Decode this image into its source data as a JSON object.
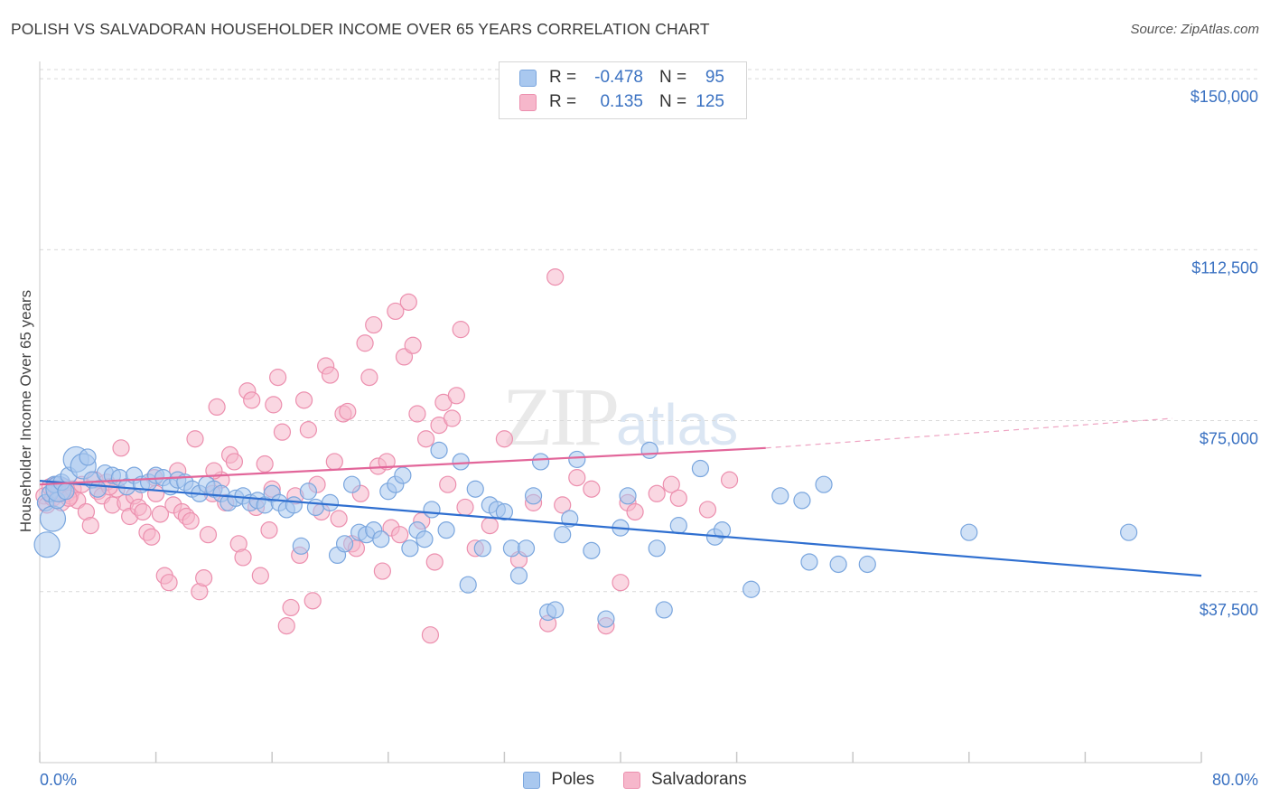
{
  "title": "POLISH VS SALVADORAN HOUSEHOLDER INCOME OVER 65 YEARS CORRELATION CHART",
  "source": "Source: ZipAtlas.com",
  "watermark": {
    "zip": "ZIP",
    "atlas": "atlas"
  },
  "legend": {
    "rows": [
      {
        "r_label": "R =",
        "r_value": "-0.478",
        "n_label": "N =",
        "n_value": "95"
      },
      {
        "r_label": "R =",
        "r_value": "0.135",
        "n_label": "N =",
        "n_value": "125"
      }
    ]
  },
  "bottom_legend": [
    "Poles",
    "Salvadorans"
  ],
  "colors": {
    "poles_fill": "#a9c8ef",
    "poles_stroke": "#7aa6de",
    "poles_line": "#2f6fd0",
    "salv_fill": "#f6b7cb",
    "salv_stroke": "#ec8fae",
    "salv_line": "#e2669a",
    "axis_label": "#3b72c2",
    "grid": "#d9d9d9"
  },
  "chart_data": {
    "type": "scatter",
    "title": "POLISH VS SALVADORAN HOUSEHOLDER INCOME OVER 65 YEARS CORRELATION CHART",
    "xlabel": "",
    "ylabel": "Householder Income Over 65 years",
    "xlim": [
      0,
      80
    ],
    "ylim": [
      0,
      152000
    ],
    "x_tick_labels": [
      "0.0%",
      "80.0%"
    ],
    "y_ticks": [
      37500,
      75000,
      112500,
      150000
    ],
    "y_tick_labels": [
      "$37,500",
      "$75,000",
      "$112,500",
      "$150,000"
    ],
    "grid": true,
    "legend_position": "top-center",
    "series": [
      {
        "name": "Poles",
        "trend": {
          "x": [
            0,
            80
          ],
          "y": [
            61800,
            41000
          ]
        },
        "points": [
          [
            0.4,
            57000
          ],
          [
            0.5,
            47800
          ],
          [
            0.7,
            59000
          ],
          [
            0.9,
            53500
          ],
          [
            1.0,
            61000
          ],
          [
            1.2,
            57500
          ],
          [
            1.3,
            60000
          ],
          [
            1.5,
            61500
          ],
          [
            1.8,
            59500
          ],
          [
            2.0,
            63000
          ],
          [
            2.5,
            66500
          ],
          [
            3.0,
            65000
          ],
          [
            3.3,
            67000
          ],
          [
            3.6,
            62000
          ],
          [
            4.0,
            60000
          ],
          [
            4.5,
            63500
          ],
          [
            5.0,
            63000
          ],
          [
            5.5,
            62500
          ],
          [
            6.0,
            60500
          ],
          [
            6.5,
            63000
          ],
          [
            7.0,
            61000
          ],
          [
            7.5,
            61500
          ],
          [
            8.0,
            63000
          ],
          [
            8.5,
            62500
          ],
          [
            9.0,
            60500
          ],
          [
            9.5,
            62000
          ],
          [
            10.0,
            61500
          ],
          [
            10.5,
            60000
          ],
          [
            11.0,
            59000
          ],
          [
            11.5,
            61000
          ],
          [
            12.0,
            60000
          ],
          [
            12.5,
            59000
          ],
          [
            13.0,
            57000
          ],
          [
            13.5,
            58000
          ],
          [
            14.0,
            58500
          ],
          [
            14.5,
            57000
          ],
          [
            15.0,
            57500
          ],
          [
            15.5,
            56500
          ],
          [
            16.0,
            59000
          ],
          [
            16.5,
            57000
          ],
          [
            17.0,
            55500
          ],
          [
            17.5,
            56500
          ],
          [
            18.0,
            47500
          ],
          [
            18.5,
            59500
          ],
          [
            19.0,
            56000
          ],
          [
            20.0,
            57000
          ],
          [
            20.5,
            45500
          ],
          [
            21.0,
            48000
          ],
          [
            21.5,
            61000
          ],
          [
            22.0,
            50500
          ],
          [
            22.5,
            50000
          ],
          [
            23.0,
            51000
          ],
          [
            23.5,
            49000
          ],
          [
            24.0,
            59500
          ],
          [
            24.5,
            61000
          ],
          [
            25.0,
            63000
          ],
          [
            25.5,
            47000
          ],
          [
            26.0,
            51000
          ],
          [
            26.5,
            49000
          ],
          [
            27.0,
            55500
          ],
          [
            27.5,
            68500
          ],
          [
            28.0,
            51000
          ],
          [
            29.0,
            66000
          ],
          [
            29.5,
            39000
          ],
          [
            30.0,
            60000
          ],
          [
            30.5,
            47000
          ],
          [
            31.0,
            56500
          ],
          [
            31.5,
            55500
          ],
          [
            32.0,
            55000
          ],
          [
            32.5,
            47000
          ],
          [
            33.0,
            41000
          ],
          [
            33.5,
            47000
          ],
          [
            34.0,
            58500
          ],
          [
            34.5,
            66000
          ],
          [
            35.0,
            33000
          ],
          [
            35.5,
            33500
          ],
          [
            36.0,
            50000
          ],
          [
            36.5,
            53500
          ],
          [
            37.0,
            66500
          ],
          [
            38.0,
            46500
          ],
          [
            39.0,
            31500
          ],
          [
            40.0,
            51500
          ],
          [
            40.5,
            58500
          ],
          [
            42.0,
            68500
          ],
          [
            42.5,
            47000
          ],
          [
            43.0,
            33500
          ],
          [
            44.0,
            52000
          ],
          [
            45.5,
            64500
          ],
          [
            46.5,
            49500
          ],
          [
            47.0,
            51000
          ],
          [
            49.0,
            38000
          ],
          [
            51.0,
            58500
          ],
          [
            52.5,
            57500
          ],
          [
            53.0,
            44000
          ],
          [
            54.0,
            61000
          ],
          [
            55.0,
            43500
          ],
          [
            57.0,
            43500
          ],
          [
            64.0,
            50500
          ],
          [
            75.0,
            50500
          ]
        ],
        "large_points": [
          [
            0.5,
            47800
          ],
          [
            0.9,
            53500
          ],
          [
            1.3,
            60000
          ],
          [
            2.5,
            66500
          ],
          [
            3.0,
            65000
          ]
        ]
      },
      {
        "name": "Salvadorans",
        "trend": {
          "x": [
            0,
            50
          ],
          "y": [
            61000,
            69000
          ]
        },
        "trend_dashed": {
          "x": [
            50,
            78
          ],
          "y": [
            69000,
            75500
          ]
        },
        "points": [
          [
            0.3,
            58500
          ],
          [
            0.5,
            56500
          ],
          [
            0.7,
            60500
          ],
          [
            0.9,
            58000
          ],
          [
            1.1,
            61000
          ],
          [
            1.3,
            59500
          ],
          [
            1.5,
            57000
          ],
          [
            1.7,
            60500
          ],
          [
            1.9,
            59000
          ],
          [
            2.1,
            58500
          ],
          [
            2.3,
            60000
          ],
          [
            2.6,
            57500
          ],
          [
            2.9,
            61000
          ],
          [
            3.2,
            55000
          ],
          [
            3.5,
            52000
          ],
          [
            3.8,
            62000
          ],
          [
            4.0,
            59500
          ],
          [
            4.3,
            58500
          ],
          [
            4.6,
            61500
          ],
          [
            5.0,
            56500
          ],
          [
            5.3,
            60000
          ],
          [
            5.6,
            69000
          ],
          [
            5.9,
            57000
          ],
          [
            6.2,
            54000
          ],
          [
            6.5,
            58500
          ],
          [
            6.8,
            56000
          ],
          [
            7.1,
            55000
          ],
          [
            7.4,
            50500
          ],
          [
            7.7,
            49500
          ],
          [
            8.0,
            59000
          ],
          [
            8.3,
            54500
          ],
          [
            8.6,
            41000
          ],
          [
            8.9,
            39500
          ],
          [
            9.2,
            56500
          ],
          [
            9.5,
            64000
          ],
          [
            9.8,
            55000
          ],
          [
            10.1,
            54000
          ],
          [
            10.4,
            53000
          ],
          [
            10.7,
            71000
          ],
          [
            11.0,
            37500
          ],
          [
            11.3,
            40500
          ],
          [
            11.6,
            50000
          ],
          [
            11.9,
            59000
          ],
          [
            12.2,
            78000
          ],
          [
            12.5,
            62000
          ],
          [
            12.8,
            57000
          ],
          [
            13.1,
            67500
          ],
          [
            13.4,
            66000
          ],
          [
            13.7,
            48000
          ],
          [
            14.0,
            45000
          ],
          [
            14.3,
            81500
          ],
          [
            14.6,
            79500
          ],
          [
            14.9,
            56000
          ],
          [
            15.2,
            41000
          ],
          [
            15.5,
            65500
          ],
          [
            15.8,
            51000
          ],
          [
            16.1,
            78500
          ],
          [
            16.4,
            84500
          ],
          [
            16.7,
            72500
          ],
          [
            17.0,
            30000
          ],
          [
            17.3,
            34000
          ],
          [
            17.6,
            58500
          ],
          [
            17.9,
            45500
          ],
          [
            18.2,
            79500
          ],
          [
            18.5,
            73000
          ],
          [
            18.8,
            35500
          ],
          [
            19.1,
            61000
          ],
          [
            19.4,
            55000
          ],
          [
            19.7,
            87000
          ],
          [
            20.0,
            85000
          ],
          [
            20.3,
            66000
          ],
          [
            20.6,
            53500
          ],
          [
            20.9,
            76500
          ],
          [
            21.2,
            77000
          ],
          [
            21.5,
            48000
          ],
          [
            21.8,
            47000
          ],
          [
            22.1,
            59000
          ],
          [
            22.4,
            92000
          ],
          [
            22.7,
            84500
          ],
          [
            23.0,
            96000
          ],
          [
            23.3,
            65000
          ],
          [
            23.6,
            42000
          ],
          [
            23.9,
            66000
          ],
          [
            24.2,
            51500
          ],
          [
            24.5,
            99000
          ],
          [
            24.8,
            50000
          ],
          [
            25.1,
            89000
          ],
          [
            25.4,
            101000
          ],
          [
            25.7,
            91500
          ],
          [
            26.0,
            76500
          ],
          [
            26.3,
            53000
          ],
          [
            26.6,
            71000
          ],
          [
            26.9,
            28000
          ],
          [
            27.2,
            44000
          ],
          [
            27.5,
            74000
          ],
          [
            27.8,
            79000
          ],
          [
            28.1,
            61000
          ],
          [
            28.4,
            75500
          ],
          [
            28.7,
            80500
          ],
          [
            29.0,
            95000
          ],
          [
            29.3,
            56000
          ],
          [
            30.0,
            47000
          ],
          [
            31.0,
            52000
          ],
          [
            32.0,
            71000
          ],
          [
            33.0,
            44500
          ],
          [
            34.0,
            57000
          ],
          [
            35.0,
            30500
          ],
          [
            35.5,
            106500
          ],
          [
            36.0,
            56500
          ],
          [
            37.0,
            62500
          ],
          [
            38.0,
            60000
          ],
          [
            39.0,
            30000
          ],
          [
            40.0,
            39500
          ],
          [
            40.5,
            57000
          ],
          [
            41.0,
            55000
          ],
          [
            42.5,
            59000
          ],
          [
            43.5,
            61000
          ],
          [
            44.0,
            58000
          ],
          [
            46.0,
            55500
          ],
          [
            47.5,
            62000
          ],
          [
            2.0,
            58000
          ],
          [
            4.8,
            60500
          ],
          [
            7.9,
            62500
          ],
          [
            12.0,
            64000
          ],
          [
            16.0,
            60000
          ]
        ]
      }
    ]
  }
}
